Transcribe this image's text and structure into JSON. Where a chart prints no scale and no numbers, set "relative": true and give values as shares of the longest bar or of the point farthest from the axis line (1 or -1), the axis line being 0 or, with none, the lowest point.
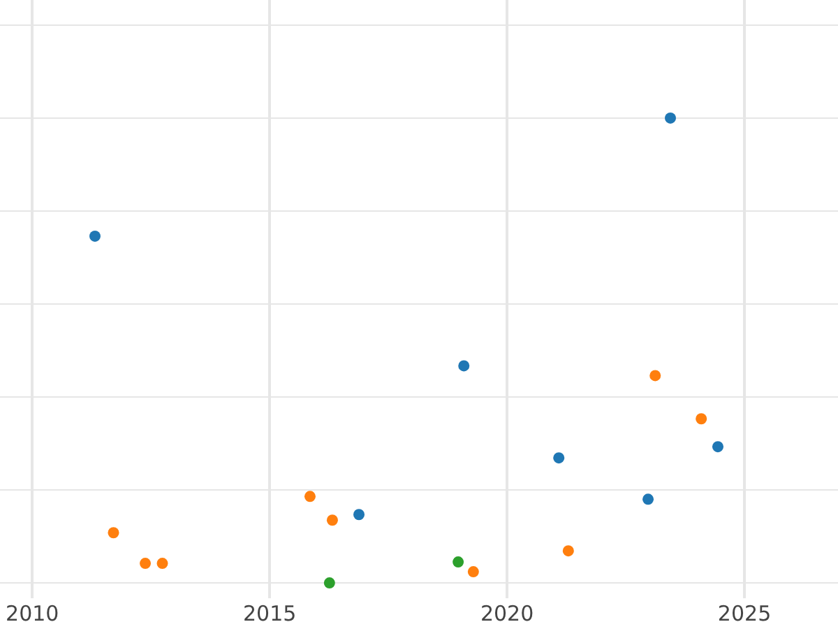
{
  "chart_data": {
    "type": "scatter",
    "relative": true,
    "xlim": [
      2009.32,
      2026.97
    ],
    "xticks": [
      2010,
      2015,
      2020,
      2025
    ],
    "grid": true,
    "marker": "circle",
    "series": [
      {
        "color": "#1f77b4",
        "x": [
          2011.32,
          2023.44,
          2019.09,
          2021.09,
          2024.44,
          2022.97,
          2016.88
        ],
        "values": [
          0.746,
          1.0,
          0.467,
          0.269,
          0.293,
          0.18,
          0.147
        ]
      },
      {
        "color": "#ff7f0e",
        "x": [
          2011.71,
          2012.38,
          2012.74,
          2015.85,
          2016.32,
          2023.12,
          2024.09,
          2021.29,
          2019.29
        ],
        "values": [
          0.108,
          0.042,
          0.042,
          0.186,
          0.135,
          0.446,
          0.353,
          0.069,
          0.024
        ]
      },
      {
        "color": "#2ca02c",
        "x": [
          2016.26,
          2018.97
        ],
        "values": [
          0.0,
          0.045
        ]
      }
    ]
  }
}
